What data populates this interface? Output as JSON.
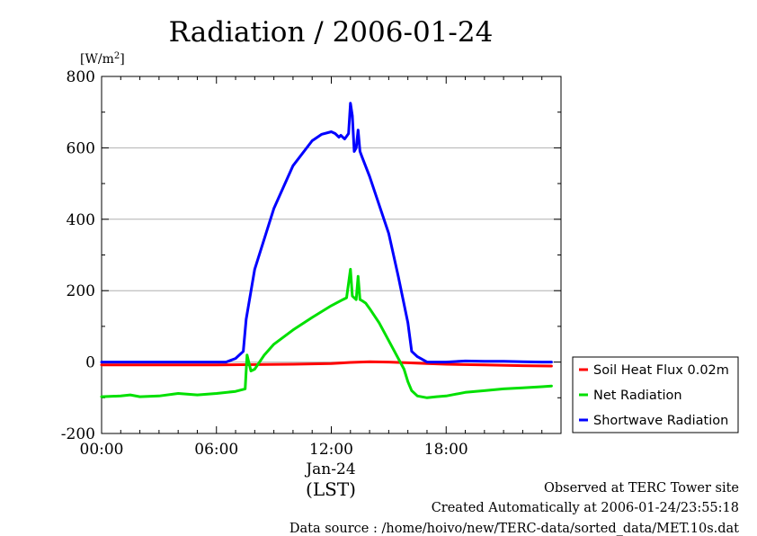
{
  "chart_data": {
    "type": "line",
    "title": "Radiation / 2006-01-24",
    "ylabel_unit": "[W/m",
    "ylabel_unit_sup": "2",
    "ylabel_unit_close": "]",
    "ylim": [
      -200,
      800
    ],
    "yticks": [
      -200,
      0,
      200,
      400,
      600,
      800
    ],
    "ytick_labels": [
      "-200",
      "0",
      "200",
      "400",
      "600",
      "800"
    ],
    "xlim": [
      0,
      24
    ],
    "xticks": [
      0,
      6,
      12,
      18
    ],
    "xtick_labels": [
      "00:00",
      "06:00",
      "12:00",
      "18:00"
    ],
    "xdate_label": "Jan-24",
    "xlabel": "(LST)",
    "grid": true,
    "legend_position": "right",
    "series": [
      {
        "name": "Soil Heat Flux 0.02m",
        "color": "#ff0000",
        "x": [
          0,
          2,
          4,
          6,
          8,
          10,
          12,
          13,
          14,
          15,
          16,
          17,
          18,
          20,
          22,
          23.5
        ],
        "y": [
          -8,
          -8,
          -8,
          -8,
          -7,
          -6,
          -4,
          -1,
          1,
          0,
          -2,
          -4,
          -6,
          -8,
          -10,
          -11
        ]
      },
      {
        "name": "Net Radiation",
        "color": "#00e000",
        "x": [
          0,
          1,
          1.5,
          2,
          3,
          4,
          5,
          6,
          7,
          7.5,
          7.6,
          7.8,
          8,
          8.5,
          9,
          10,
          11,
          12,
          12.5,
          12.8,
          13,
          13.1,
          13.3,
          13.4,
          13.5,
          13.6,
          13.8,
          14,
          14.5,
          15,
          15.5,
          15.8,
          16,
          16.2,
          16.5,
          17,
          17.5,
          18,
          19,
          20,
          21,
          22,
          23,
          23.5
        ],
        "y": [
          -97,
          -95,
          -92,
          -97,
          -95,
          -88,
          -92,
          -88,
          -82,
          -75,
          20,
          -25,
          -20,
          20,
          50,
          90,
          125,
          158,
          172,
          180,
          260,
          185,
          175,
          240,
          175,
          172,
          165,
          150,
          110,
          60,
          10,
          -20,
          -55,
          -80,
          -95,
          -100,
          -97,
          -95,
          -85,
          -80,
          -75,
          -72,
          -69,
          -67
        ]
      },
      {
        "name": "Shortwave Radiation",
        "color": "#0000ff",
        "x": [
          0,
          2,
          4,
          6,
          6.5,
          7,
          7.4,
          7.55,
          8,
          9,
          10,
          11,
          11.5,
          12,
          12.2,
          12.4,
          12.5,
          12.7,
          12.9,
          13.0,
          13.1,
          13.2,
          13.3,
          13.4,
          13.5,
          13.6,
          14,
          15,
          15.5,
          16,
          16.2,
          16.5,
          17,
          18,
          19,
          20,
          21,
          22,
          23,
          23.5
        ],
        "y": [
          0,
          0,
          0,
          0,
          0,
          10,
          30,
          120,
          260,
          430,
          550,
          620,
          638,
          645,
          640,
          630,
          635,
          625,
          640,
          725,
          690,
          590,
          600,
          650,
          590,
          575,
          520,
          360,
          240,
          110,
          30,
          15,
          0,
          0,
          3,
          2,
          2,
          1,
          0,
          0
        ]
      }
    ]
  },
  "footer": {
    "line1": "Observed at TERC Tower site",
    "line2": "Created Automatically at 2006-01-24/23:55:18",
    "line3": "Data source : /home/hoivo/new/TERC-data/sorted_data/MET.10s.dat"
  }
}
